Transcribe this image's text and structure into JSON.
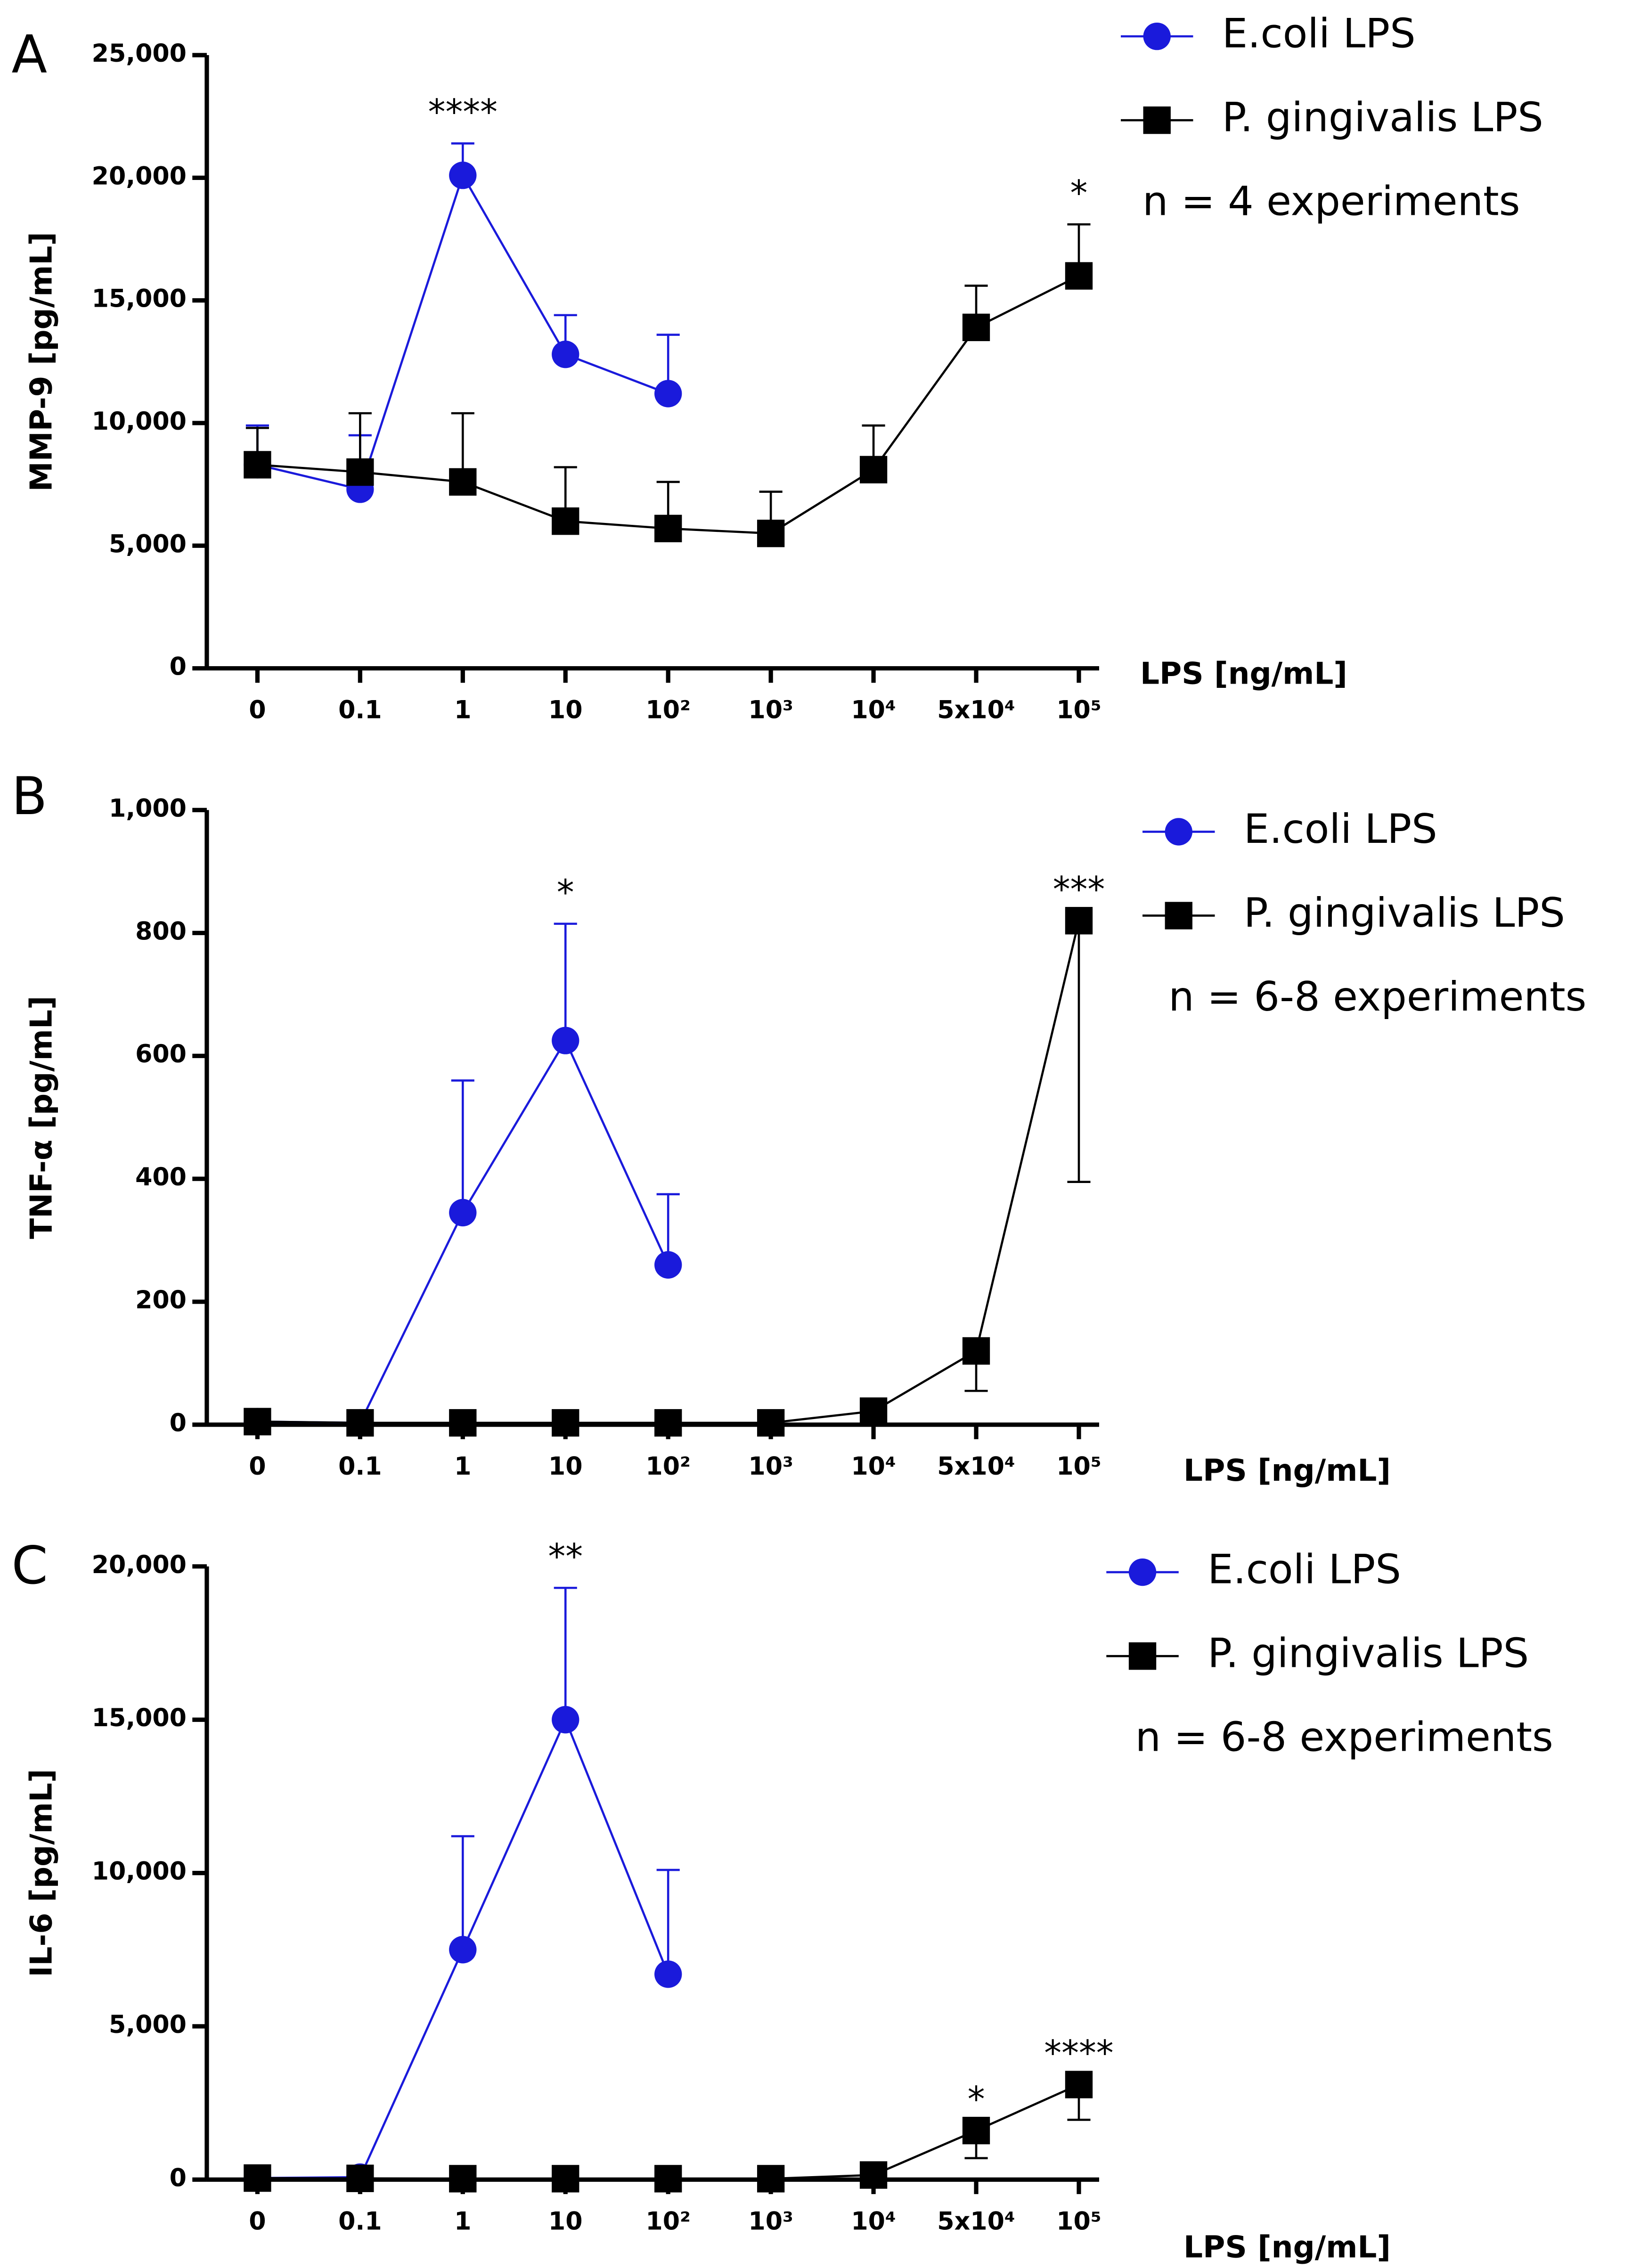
{
  "chart_data": [
    {
      "type": "line",
      "panel": "A",
      "ylabel": "MMP-9 [pg/mL]",
      "xlabel": "LPS [ng/mL]",
      "note": "n = 4 experiments",
      "categories": [
        "0",
        "0.1",
        "1",
        "10",
        "10²",
        "10³",
        "10⁴",
        "5x10⁴",
        "10⁵"
      ],
      "ylim": [
        0,
        25000
      ],
      "yticks": [
        0,
        {
          "value": 5000,
          "label": "5,000"
        },
        {
          "value": 10000,
          "label": "10,000"
        },
        {
          "value": 15000,
          "label": "15,000"
        },
        {
          "value": 20000,
          "label": "20,000"
        },
        {
          "value": 25000,
          "label": "25,000"
        }
      ],
      "series": [
        {
          "name": "E.coli LPS",
          "color": "#1a1adb",
          "marker": "circle",
          "values": [
            8300,
            7300,
            20100,
            12800,
            11200,
            null,
            null,
            null,
            null
          ],
          "errors": [
            1600,
            2200,
            1300,
            1600,
            2400,
            null,
            null,
            null,
            null
          ],
          "error_side": [
            "up",
            "up",
            "up",
            "up",
            "up",
            null,
            null,
            null,
            null
          ]
        },
        {
          "name": "P. gingivalis LPS",
          "color": "#000000",
          "marker": "square",
          "values": [
            8300,
            8000,
            7600,
            6000,
            5700,
            5500,
            8100,
            13900,
            16000
          ],
          "errors": [
            1500,
            2400,
            2800,
            2200,
            1900,
            1700,
            1800,
            1700,
            2100
          ],
          "error_side": [
            "up",
            "up",
            "up",
            "up",
            "up",
            "up",
            "up",
            "up",
            "up"
          ]
        }
      ],
      "annotations": [
        {
          "text": "****",
          "index": 2,
          "series": 0
        },
        {
          "text": "*",
          "index": 8,
          "series": 1
        }
      ]
    },
    {
      "type": "line",
      "panel": "B",
      "ylabel": "TNF-α [pg/mL]",
      "xlabel": "LPS [ng/mL]",
      "note": "n = 6-8 experiments",
      "categories": [
        "0",
        "0.1",
        "1",
        "10",
        "10²",
        "10³",
        "10⁴",
        "5x10⁴",
        "10⁵"
      ],
      "ylim": [
        0,
        1000
      ],
      "yticks": [
        0,
        200,
        400,
        600,
        800,
        {
          "value": 1000,
          "label": "1,000"
        }
      ],
      "series": [
        {
          "name": "E.coli LPS",
          "color": "#1a1adb",
          "marker": "circle",
          "values": [
            5,
            3,
            345,
            625,
            260,
            null,
            null,
            null,
            null
          ],
          "errors": [
            0,
            0,
            215,
            190,
            115,
            null,
            null,
            null,
            null
          ],
          "error_side": [
            "up",
            "up",
            "up",
            "up",
            "up",
            null,
            null,
            null,
            null
          ]
        },
        {
          "name": "P. gingivalis LPS",
          "color": "#000000",
          "marker": "square",
          "values": [
            5,
            3,
            3,
            3,
            3,
            3,
            22,
            120,
            820
          ],
          "errors": [
            0,
            0,
            0,
            0,
            0,
            0,
            0,
            65,
            425
          ],
          "error_side": [
            "up",
            "up",
            "up",
            "up",
            "up",
            "up",
            "up",
            "down",
            "down"
          ]
        }
      ],
      "annotations": [
        {
          "text": "*",
          "index": 3,
          "series": 0
        },
        {
          "text": "***",
          "index": 8,
          "series": 1
        }
      ]
    },
    {
      "type": "line",
      "panel": "C",
      "ylabel": "IL-6 [pg/mL]",
      "xlabel": "LPS [ng/mL]",
      "note": "n = 6-8 experiments",
      "categories": [
        "0",
        "0.1",
        "1",
        "10",
        "10²",
        "10³",
        "10⁴",
        "5x10⁴",
        "10⁵"
      ],
      "ylim": [
        0,
        20000
      ],
      "yticks": [
        0,
        {
          "value": 5000,
          "label": "5,000"
        },
        {
          "value": 10000,
          "label": "10,000"
        },
        {
          "value": 15000,
          "label": "15,000"
        },
        {
          "value": 20000,
          "label": "20,000"
        }
      ],
      "series": [
        {
          "name": "E.coli LPS",
          "color": "#1a1adb",
          "marker": "circle",
          "values": [
            50,
            80,
            7500,
            15000,
            6700,
            null,
            null,
            null,
            null
          ],
          "errors": [
            0,
            0,
            3700,
            4300,
            3400,
            null,
            null,
            null,
            null
          ],
          "error_side": [
            "up",
            "up",
            "up",
            "up",
            "up",
            null,
            null,
            null,
            null
          ]
        },
        {
          "name": "P. gingivalis LPS",
          "color": "#000000",
          "marker": "square",
          "values": [
            50,
            40,
            30,
            30,
            30,
            30,
            150,
            1600,
            3100
          ],
          "errors": [
            0,
            0,
            0,
            0,
            0,
            0,
            0,
            900,
            1150
          ],
          "error_side": [
            "up",
            "up",
            "up",
            "up",
            "up",
            "up",
            "up",
            "down",
            "down"
          ]
        }
      ],
      "annotations": [
        {
          "text": "**",
          "index": 3,
          "series": 0
        },
        {
          "text": "*",
          "index": 7,
          "series": 1
        },
        {
          "text": "****",
          "index": 8,
          "series": 1
        }
      ]
    }
  ]
}
